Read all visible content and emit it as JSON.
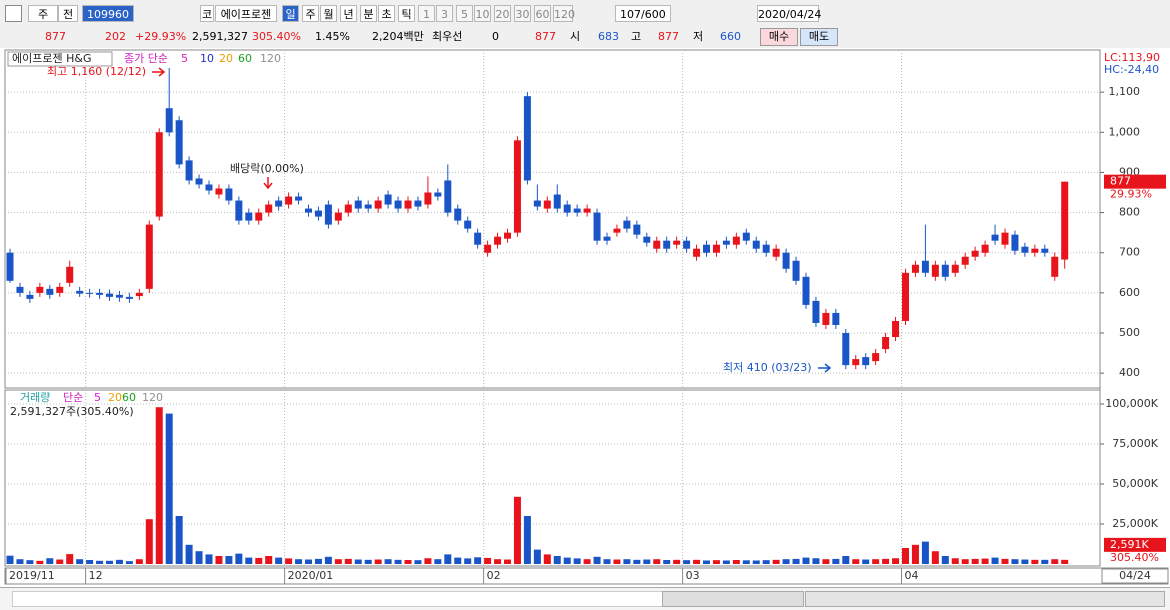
{
  "toolbar": {
    "row1": [
      "주",
      "전",
      "109960",
      "코",
      "에이프로젠",
      "일",
      "주",
      "월",
      "년",
      "분",
      "초",
      "틱",
      "1",
      "3",
      "5",
      "10",
      "20",
      "30",
      "60",
      "120",
      "107",
      "/600",
      "2020/04/24"
    ],
    "row2": [
      "877",
      "202",
      "+29.93%",
      "2,591,327",
      "305.40%",
      "1.45%",
      "2,204백만",
      "최우선",
      "0",
      "877",
      "시",
      "683",
      "고",
      "877",
      "저",
      "660",
      "매수",
      "매도"
    ]
  },
  "chart_data": [
    {
      "type": "candlestick",
      "title": "에이프로젠 H&G",
      "legend_prefix": "종가 단순",
      "ma_periods": [
        5,
        10,
        20,
        60,
        120
      ],
      "ma_colors": [
        "#d020c0",
        "#2030c0",
        "#e8a000",
        "#20a020",
        "#909090"
      ],
      "up_color": "#e8141b",
      "down_color": "#1a55c8",
      "categories": [
        "2019/11",
        null,
        null,
        null,
        null,
        null,
        null,
        null,
        "12",
        null,
        null,
        null,
        null,
        null,
        null,
        null,
        null,
        null,
        null,
        null,
        null,
        null,
        null,
        null,
        null,
        null,
        null,
        null,
        "2020/01",
        null,
        null,
        null,
        null,
        null,
        null,
        null,
        null,
        null,
        null,
        null,
        null,
        null,
        null,
        null,
        null,
        null,
        null,
        null,
        "02",
        null,
        null,
        null,
        null,
        null,
        null,
        null,
        null,
        null,
        null,
        null,
        null,
        null,
        null,
        null,
        null,
        null,
        null,
        null,
        "03",
        null,
        null,
        null,
        null,
        null,
        null,
        null,
        null,
        null,
        null,
        null,
        null,
        null,
        null,
        null,
        null,
        null,
        null,
        null,
        null,
        null,
        "04",
        null,
        null,
        null,
        null,
        null,
        null,
        null,
        null,
        null,
        null,
        null,
        null,
        null,
        null,
        null,
        "04/24"
      ],
      "open": [
        700,
        615,
        595,
        600,
        610,
        600,
        625,
        605,
        600,
        600,
        598,
        595,
        590,
        592,
        610,
        790,
        1060,
        1030,
        930,
        885,
        870,
        845,
        860,
        830,
        800,
        780,
        800,
        830,
        820,
        840,
        810,
        805,
        820,
        780,
        800,
        830,
        820,
        810,
        845,
        830,
        810,
        830,
        820,
        850,
        880,
        810,
        780,
        750,
        700,
        720,
        735,
        750,
        1090,
        830,
        810,
        845,
        820,
        810,
        800,
        800,
        740,
        750,
        780,
        770,
        740,
        710,
        730,
        720,
        730,
        690,
        720,
        700,
        730,
        720,
        750,
        730,
        720,
        690,
        700,
        680,
        640,
        580,
        520,
        550,
        500,
        420,
        440,
        430,
        460,
        490,
        530,
        650,
        680,
        640,
        670,
        650,
        670,
        690,
        700,
        745,
        720,
        745,
        715,
        700,
        710,
        640,
        683
      ],
      "high": [
        710,
        625,
        605,
        625,
        620,
        625,
        680,
        615,
        610,
        610,
        608,
        605,
        600,
        610,
        780,
        1010,
        1160,
        1040,
        940,
        895,
        880,
        870,
        870,
        840,
        810,
        810,
        830,
        840,
        850,
        850,
        820,
        815,
        830,
        810,
        830,
        840,
        830,
        840,
        855,
        840,
        840,
        840,
        890,
        860,
        920,
        820,
        790,
        760,
        730,
        750,
        760,
        990,
        1100,
        870,
        840,
        870,
        830,
        820,
        820,
        810,
        750,
        770,
        790,
        780,
        750,
        740,
        740,
        740,
        740,
        720,
        730,
        730,
        740,
        750,
        760,
        740,
        730,
        720,
        710,
        690,
        650,
        590,
        560,
        560,
        510,
        445,
        450,
        460,
        500,
        540,
        660,
        680,
        770,
        680,
        680,
        680,
        700,
        715,
        730,
        770,
        760,
        755,
        725,
        720,
        720,
        700,
        877
      ],
      "low": [
        625,
        590,
        575,
        590,
        585,
        590,
        615,
        590,
        588,
        585,
        580,
        578,
        575,
        582,
        600,
        780,
        990,
        910,
        870,
        860,
        845,
        835,
        820,
        770,
        770,
        770,
        790,
        805,
        810,
        820,
        790,
        780,
        760,
        770,
        790,
        800,
        800,
        800,
        810,
        800,
        800,
        805,
        810,
        830,
        790,
        770,
        750,
        710,
        690,
        710,
        725,
        740,
        870,
        805,
        800,
        800,
        790,
        790,
        790,
        720,
        720,
        740,
        750,
        735,
        715,
        700,
        700,
        710,
        700,
        680,
        690,
        690,
        710,
        710,
        720,
        700,
        690,
        680,
        650,
        620,
        560,
        515,
        510,
        510,
        410,
        410,
        410,
        420,
        450,
        480,
        520,
        640,
        640,
        630,
        630,
        640,
        660,
        680,
        690,
        720,
        710,
        695,
        690,
        690,
        690,
        630,
        660
      ],
      "close": [
        630,
        600,
        585,
        615,
        595,
        615,
        665,
        598,
        598,
        595,
        590,
        588,
        585,
        600,
        770,
        1000,
        1000,
        920,
        880,
        870,
        855,
        860,
        830,
        780,
        780,
        800,
        820,
        815,
        840,
        830,
        800,
        790,
        770,
        800,
        820,
        810,
        810,
        830,
        820,
        810,
        830,
        815,
        850,
        840,
        800,
        780,
        760,
        720,
        720,
        740,
        750,
        980,
        880,
        815,
        830,
        810,
        800,
        800,
        810,
        730,
        730,
        760,
        760,
        745,
        725,
        730,
        710,
        730,
        710,
        710,
        700,
        720,
        720,
        740,
        730,
        710,
        700,
        710,
        660,
        630,
        570,
        525,
        550,
        520,
        420,
        435,
        420,
        450,
        490,
        530,
        650,
        670,
        650,
        670,
        640,
        670,
        690,
        705,
        720,
        730,
        750,
        705,
        700,
        710,
        700,
        690,
        877
      ],
      "ylim": [
        363,
        1205
      ],
      "yticks": [
        {
          "value": 1100,
          "label": "1,100"
        },
        {
          "value": 1000,
          "label": "1,000"
        },
        900,
        800,
        700,
        600,
        500,
        400
      ],
      "change_label": "29.93%",
      "lc_label": "LC:113,90",
      "hc_label": "HC:-24,40",
      "annotations": [
        "최고 1,160 (12/12)",
        "배당락(0.00%)",
        "최저 410 (03/23)"
      ],
      "grid": true
    },
    {
      "type": "bar",
      "title": "거래량",
      "legend_prefix": "단순",
      "ma_periods": [
        5,
        20,
        60,
        120
      ],
      "ma_colors": [
        "#d020c0",
        "#e8a000",
        "#20a020",
        "#909090"
      ],
      "summary": "2,591,327주(305.40%)",
      "values": [
        5200,
        3000,
        2400,
        2000,
        3600,
        2800,
        6200,
        3000,
        2500,
        2000,
        2000,
        2600,
        1800,
        3000,
        28000,
        98000,
        94000,
        30000,
        12000,
        8000,
        6000,
        5000,
        5000,
        6500,
        4000,
        3800,
        5000,
        4000,
        3500,
        3000,
        2800,
        3200,
        4500,
        3000,
        3200,
        2800,
        2600,
        2800,
        3000,
        2600,
        2500,
        2400,
        3600,
        3000,
        6000,
        4000,
        3500,
        4200,
        3800,
        3000,
        2800,
        42000,
        30000,
        9000,
        6000,
        5000,
        4000,
        3500,
        3000,
        4500,
        3000,
        2800,
        3000,
        2600,
        2800,
        3000,
        2500,
        2600,
        2400,
        2600,
        2200,
        2400,
        2200,
        2500,
        2300,
        2200,
        2400,
        2600,
        3000,
        3200,
        4000,
        3600,
        3000,
        3200,
        5000,
        3000,
        2800,
        3000,
        3200,
        3600,
        10000,
        12000,
        14000,
        8000,
        5000,
        3600,
        3000,
        3200,
        3400,
        4000,
        3200,
        3000,
        2800,
        2600,
        2600,
        3000,
        2591
      ],
      "last_label": "2,591K",
      "ratio_label": "305.40%",
      "ylim": [
        0,
        107500
      ],
      "yticks": [
        {
          "value": 25000,
          "label": "25,000K"
        },
        {
          "value": 50000,
          "label": "50,000K"
        },
        {
          "value": 75000,
          "label": "75,000K"
        },
        {
          "value": 100000,
          "label": "100,000K"
        }
      ],
      "grid": true
    }
  ]
}
